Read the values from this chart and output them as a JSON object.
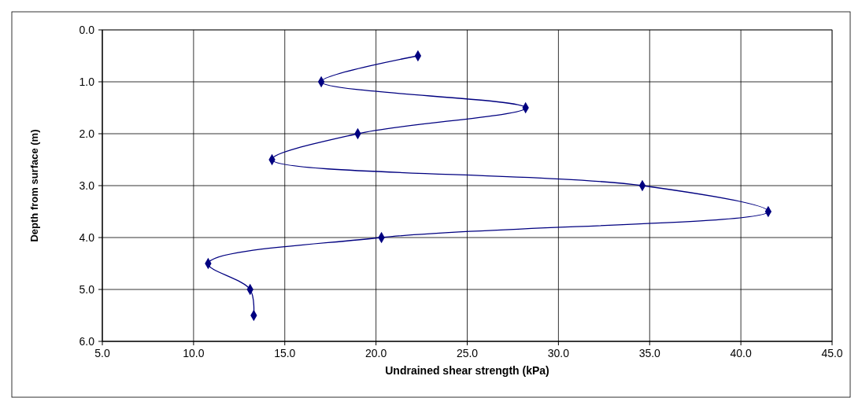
{
  "chart_data": {
    "type": "line",
    "xlabel": "Undrained shear strength (kPa)",
    "ylabel": "Depth from surface (m)",
    "x": [
      22.3,
      17.0,
      28.2,
      19.0,
      14.3,
      34.6,
      41.5,
      20.3,
      10.8,
      13.1,
      13.3
    ],
    "series": [
      {
        "color": "#000080",
        "values": [
          0.5,
          1.0,
          1.5,
          2.0,
          2.5,
          3.0,
          3.5,
          4.0,
          4.5,
          5.0,
          5.5
        ]
      }
    ],
    "xlim": [
      5,
      45
    ],
    "xticks": [
      {
        "value": 5,
        "label": "5.0"
      },
      {
        "value": 10,
        "label": "10.0"
      },
      {
        "value": 15,
        "label": "15.0"
      },
      {
        "value": 20,
        "label": "20.0"
      },
      {
        "value": 25,
        "label": "25.0"
      },
      {
        "value": 30,
        "label": "30.0"
      },
      {
        "value": 35,
        "label": "35.0"
      },
      {
        "value": 40,
        "label": "40.0"
      },
      {
        "value": 45,
        "label": "45.0"
      }
    ],
    "ylim": [
      6,
      0
    ],
    "yticks": [
      {
        "value": 0,
        "label": "0.0"
      },
      {
        "value": 1,
        "label": "1.0"
      },
      {
        "value": 2,
        "label": "2.0"
      },
      {
        "value": 3,
        "label": "3.0"
      },
      {
        "value": 4,
        "label": "4.0"
      },
      {
        "value": 5,
        "label": "5.0"
      },
      {
        "value": 6,
        "label": "6.0"
      }
    ],
    "grid": true,
    "marker": "diamond",
    "line_style": "solid"
  }
}
